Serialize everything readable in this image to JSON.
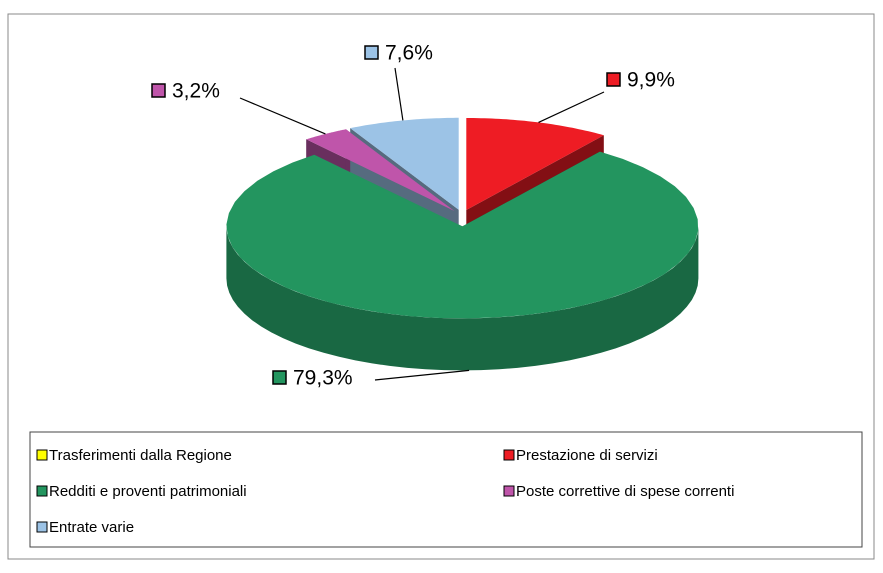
{
  "chart_data": {
    "type": "pie3d",
    "categories": [
      "Trasferimenti dalla Regione",
      "Prestazione di servizi",
      "Redditi e proventi patrimoniali",
      "Poste correttive di spese correnti",
      "Entrate varie"
    ],
    "values": [
      0,
      9.9,
      79.3,
      3.2,
      7.6
    ],
    "value_labels": [
      null,
      "9,9%",
      "79,3%",
      "3,2%",
      "7,6%"
    ],
    "colors": [
      "#ffff00",
      "#ee1c24",
      "#23955f",
      "#bf55aa",
      "#9cc3e6"
    ],
    "legend": "bottom"
  }
}
